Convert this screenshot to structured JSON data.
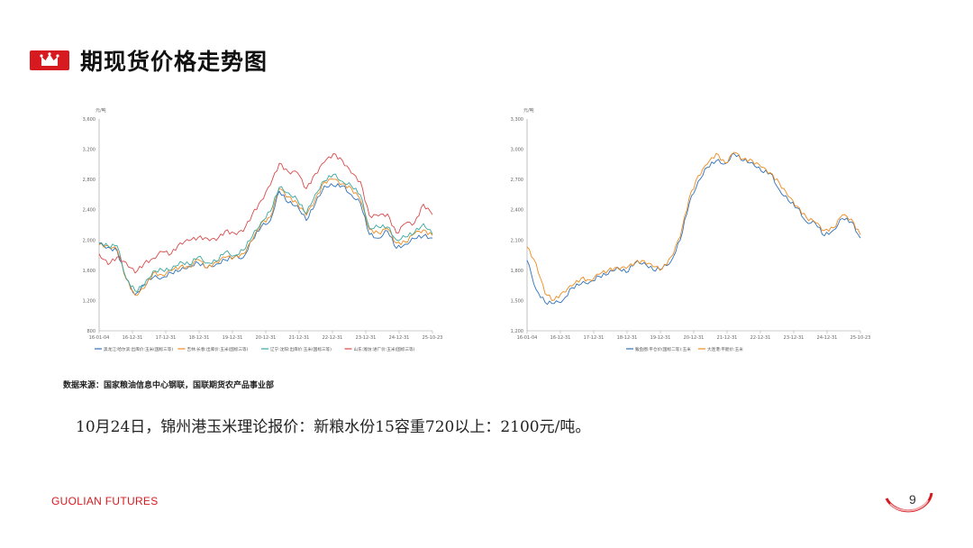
{
  "page": {
    "title": "期现货价格走势图",
    "source_note": "数据来源：国家粮油信息中心钢联，国联期货农产品事业部",
    "price_note": "10月24日，锦州港玉米理论报价：新粮水份15容重720以上：2100元/吨。",
    "brand": "GUOLIAN FUTURES",
    "page_number": "9",
    "accent_color": "#d71920",
    "icons": [
      "crown-icon"
    ]
  },
  "chart_data": [
    {
      "type": "line",
      "unit": "元/吨",
      "ylim": [
        800,
        3600
      ],
      "yticks": [
        800,
        1200,
        1600,
        2000,
        2400,
        2800,
        3200,
        3600
      ],
      "ytick_labels": [
        "800",
        "1,200",
        "1,600",
        "2,000",
        "2,400",
        "2,800",
        "3,200",
        "3,600"
      ],
      "x_labels": [
        "16-01-04",
        "16-12-31",
        "17-12-31",
        "18-12-31",
        "19-12-31",
        "20-12-31",
        "21-12-31",
        "22-12-31",
        "23-12-31",
        "24-12-31",
        "25-10-23"
      ],
      "grid": false,
      "legend_position": "bottom",
      "series": [
        {
          "name": "黑龙江:哈尔滨:出库价:玉米(国标三等)",
          "color": "#2e72b8",
          "values": [
            1950,
            1890,
            1880,
            1460,
            1300,
            1400,
            1500,
            1520,
            1540,
            1620,
            1640,
            1700,
            1640,
            1660,
            1760,
            1750,
            1780,
            2000,
            2160,
            2280,
            2620,
            2510,
            2450,
            2250,
            2500,
            2690,
            2740,
            2700,
            2600,
            2500,
            2050,
            2050,
            2100,
            1900,
            1950,
            2000,
            2080,
            2000
          ]
        },
        {
          "name": "吉林:长春:出库价:玉米(国标三等)",
          "color": "#ef8a1e",
          "values": [
            1960,
            1900,
            1890,
            1480,
            1260,
            1380,
            1540,
            1560,
            1580,
            1650,
            1660,
            1720,
            1660,
            1690,
            1780,
            1780,
            1800,
            2020,
            2200,
            2320,
            2680,
            2560,
            2510,
            2300,
            2560,
            2760,
            2800,
            2760,
            2660,
            2560,
            2120,
            2100,
            2160,
            1940,
            2000,
            2060,
            2150,
            2060
          ]
        },
        {
          "name": "辽宁:沈阳:出库价:玉米(国标三等)",
          "color": "#3aa7a0",
          "values": [
            1980,
            1920,
            1910,
            1520,
            1300,
            1420,
            1580,
            1600,
            1620,
            1690,
            1700,
            1760,
            1700,
            1730,
            1820,
            1820,
            1840,
            2060,
            2240,
            2360,
            2720,
            2600,
            2550,
            2340,
            2600,
            2800,
            2840,
            2800,
            2700,
            2600,
            2170,
            2150,
            2200,
            1980,
            2050,
            2100,
            2200,
            2100
          ]
        },
        {
          "name": "山东:潍坊:进厂价:玉米(国标三等)",
          "color": "#d94a4a",
          "values": [
            1800,
            1700,
            1750,
            1720,
            1560,
            1680,
            1780,
            1820,
            1840,
            1950,
            1990,
            2050,
            2000,
            2020,
            2100,
            2100,
            2120,
            2320,
            2550,
            2700,
            3030,
            2900,
            2880,
            2700,
            2850,
            3050,
            3130,
            3050,
            2900,
            2750,
            2350,
            2300,
            2350,
            2100,
            2200,
            2250,
            2450,
            2350
          ]
        }
      ]
    },
    {
      "type": "line",
      "unit": "元/吨",
      "ylim": [
        1200,
        3300
      ],
      "yticks": [
        1200,
        1500,
        1800,
        2100,
        2400,
        2700,
        3000,
        3300
      ],
      "ytick_labels": [
        "1,200",
        "1,500",
        "1,800",
        "2,100",
        "2,400",
        "2,700",
        "3,000",
        "3,300"
      ],
      "x_labels": [
        "16-01-04",
        "16-12-31",
        "17-12-31",
        "18-12-31",
        "19-12-31",
        "20-12-31",
        "21-12-31",
        "22-12-31",
        "23-12-31",
        "24-12-31",
        "25-10-23"
      ],
      "grid": false,
      "legend_position": "bottom",
      "series": [
        {
          "name": "鲅鱼圈:平仓价(国标二等):玉米",
          "color": "#2e72b8",
          "values": [
            1900,
            1600,
            1500,
            1450,
            1520,
            1620,
            1660,
            1700,
            1720,
            1780,
            1820,
            1780,
            1880,
            1860,
            1820,
            1800,
            1900,
            2100,
            2450,
            2700,
            2800,
            2900,
            2850,
            2950,
            2900,
            2850,
            2800,
            2750,
            2600,
            2500,
            2400,
            2300,
            2250,
            2150,
            2200,
            2300,
            2300,
            2100
          ]
        },
        {
          "name": "大连港:平舱价:玉米",
          "color": "#ef8a1e",
          "values": [
            2050,
            1850,
            1580,
            1500,
            1580,
            1660,
            1700,
            1720,
            1750,
            1800,
            1840,
            1800,
            1900,
            1880,
            1840,
            1820,
            1920,
            2150,
            2500,
            2750,
            2850,
            2950,
            2880,
            2950,
            2920,
            2880,
            2820,
            2780,
            2650,
            2550,
            2420,
            2330,
            2280,
            2180,
            2240,
            2330,
            2320,
            2150
          ]
        }
      ]
    }
  ]
}
